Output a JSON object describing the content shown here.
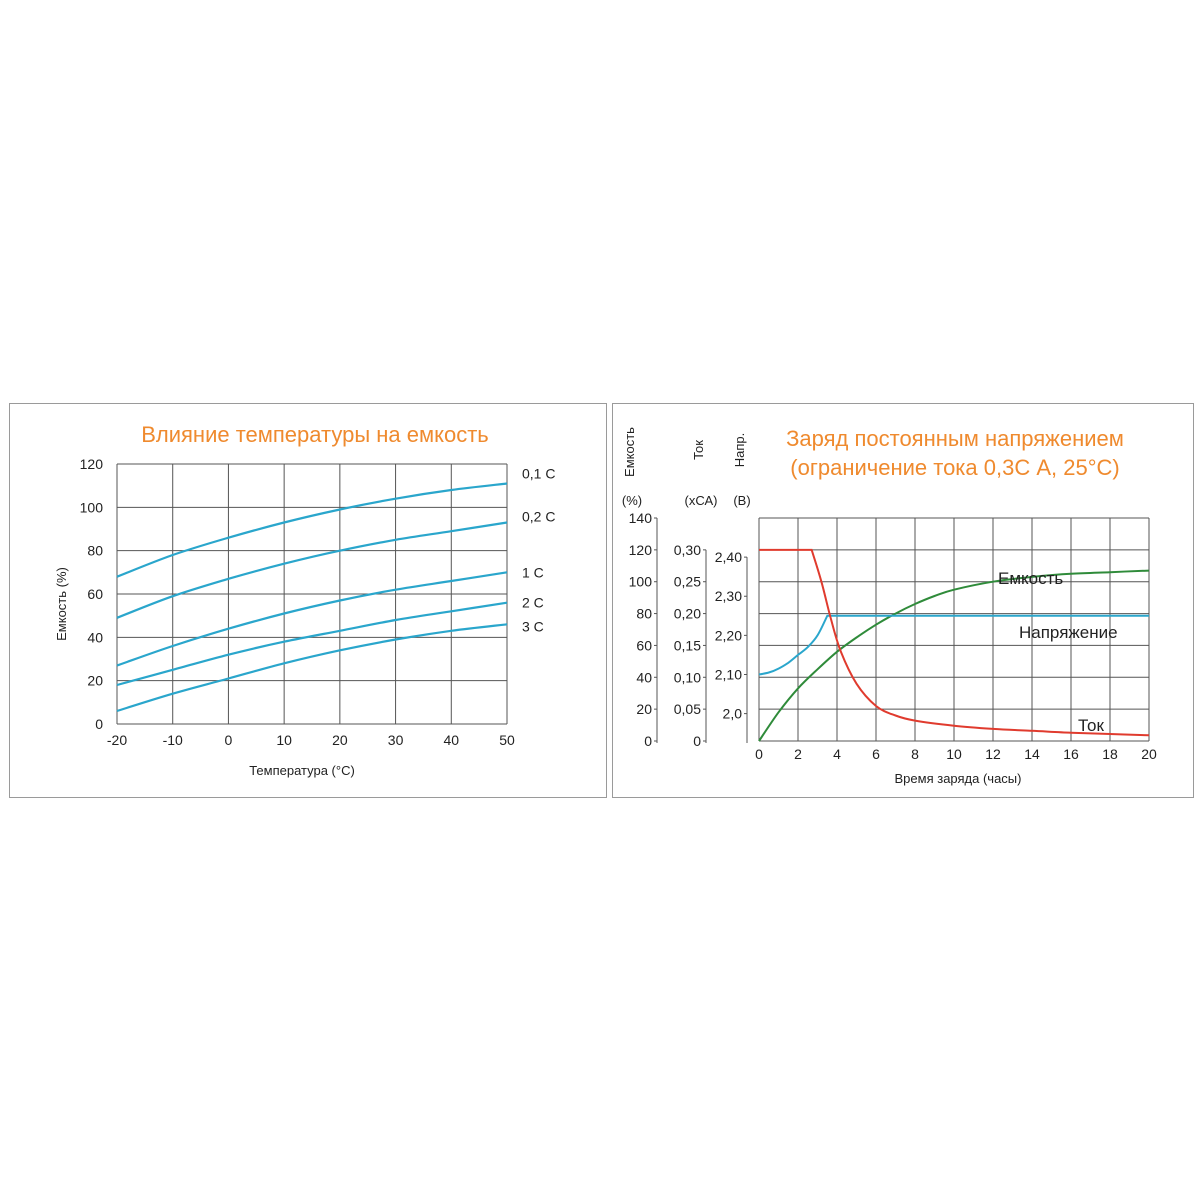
{
  "colors": {
    "title": "#ef8a2e",
    "blue": "#2aa6cc",
    "red": "#e03b2e",
    "green": "#2f8b3a",
    "grid": "#555555",
    "text": "#222222"
  },
  "chart_data": [
    {
      "type": "line",
      "title": "Влияние температуры на емкость",
      "xlabel": "Температура (°С)",
      "ylabel": "Емкость (%)",
      "xlim": [
        -20,
        50
      ],
      "ylim": [
        0,
        120
      ],
      "x_ticks": [
        -20,
        -10,
        0,
        10,
        20,
        30,
        40,
        50
      ],
      "x_tick_labels": [
        "-20",
        "-10",
        "0",
        "10",
        "20",
        "30",
        "40",
        "50"
      ],
      "y_ticks": [
        0,
        20,
        40,
        60,
        80,
        100,
        120
      ],
      "y_tick_labels": [
        "0",
        "20",
        "40",
        "60",
        "80",
        "100",
        "120"
      ],
      "grid": true,
      "legend_position": "right",
      "x": [
        -20,
        -10,
        0,
        10,
        20,
        30,
        40,
        50
      ],
      "series": [
        {
          "name": "0,1 C",
          "values": [
            68,
            78,
            86,
            93,
            99,
            104,
            108,
            111
          ]
        },
        {
          "name": "0,2 C",
          "values": [
            49,
            59,
            67,
            74,
            80,
            85,
            89,
            93
          ]
        },
        {
          "name": "1 С",
          "values": [
            27,
            36,
            44,
            51,
            57,
            62,
            66,
            70
          ]
        },
        {
          "name": "2 С",
          "values": [
            18,
            25,
            32,
            38,
            43,
            48,
            52,
            56
          ]
        },
        {
          "name": "3 С",
          "values": [
            6,
            14,
            21,
            28,
            34,
            39,
            43,
            46
          ]
        }
      ]
    },
    {
      "type": "line",
      "title": [
        "Заряд постоянным напряжением",
        "(ограничение тока 0,3С А, 25°С)"
      ],
      "xlabel": "Время заряда (часы)",
      "xlim": [
        0,
        20
      ],
      "x_ticks": [
        0,
        2,
        4,
        6,
        8,
        10,
        12,
        14,
        16,
        18,
        20
      ],
      "x_tick_labels": [
        "0",
        "2",
        "4",
        "6",
        "8",
        "10",
        "12",
        "14",
        "16",
        "18",
        "20"
      ],
      "grid": true,
      "y_axes": [
        {
          "name": "Емкость",
          "unit": "(%)",
          "range": [
            0,
            140
          ],
          "ticks": [
            0,
            20,
            40,
            60,
            80,
            100,
            120,
            140
          ],
          "tick_labels": [
            "0",
            "20",
            "40",
            "60",
            "80",
            "100",
            "120",
            "140"
          ]
        },
        {
          "name": "Ток",
          "unit": "(хСА)",
          "range": [
            0,
            0.35
          ],
          "ticks": [
            0,
            0.05,
            0.1,
            0.15,
            0.2,
            0.25,
            0.3
          ],
          "tick_labels": [
            "0",
            "0,05",
            "0,10",
            "0,15",
            "0,20",
            "0,25",
            "0,30"
          ]
        },
        {
          "name": "Напр.",
          "unit": "(В)",
          "range": [
            1.93,
            2.5
          ],
          "ticks": [
            2.0,
            2.1,
            2.2,
            2.3,
            2.4
          ],
          "tick_labels": [
            "2,0",
            "2,10",
            "2,20",
            "2,30",
            "2,40"
          ]
        }
      ],
      "series": [
        {
          "name": "Емкость",
          "axis": 0,
          "x": [
            0,
            1,
            2,
            3,
            4,
            5,
            6,
            7,
            8,
            9,
            10,
            12,
            14,
            16,
            18,
            20
          ],
          "values": [
            0,
            18,
            33,
            45,
            56,
            65,
            73,
            80,
            86,
            91,
            95,
            100,
            103,
            105,
            106,
            107
          ]
        },
        {
          "name": "Напряжение",
          "axis": 2,
          "x": [
            0,
            0.5,
            1,
            1.5,
            2,
            2.5,
            3,
            3.5,
            4,
            20
          ],
          "values": [
            2.1,
            2.105,
            2.115,
            2.13,
            2.15,
            2.17,
            2.2,
            2.25,
            2.25,
            2.25
          ]
        },
        {
          "name": "Ток",
          "axis": 1,
          "x": [
            0,
            1,
            2,
            2.7,
            3.2,
            3.7,
            4.2,
            5,
            6,
            7,
            8,
            10,
            12,
            14,
            16,
            18,
            20
          ],
          "values": [
            0.3,
            0.3,
            0.3,
            0.3,
            0.25,
            0.19,
            0.14,
            0.09,
            0.055,
            0.04,
            0.032,
            0.024,
            0.019,
            0.016,
            0.013,
            0.011,
            0.009
          ]
        }
      ]
    }
  ]
}
